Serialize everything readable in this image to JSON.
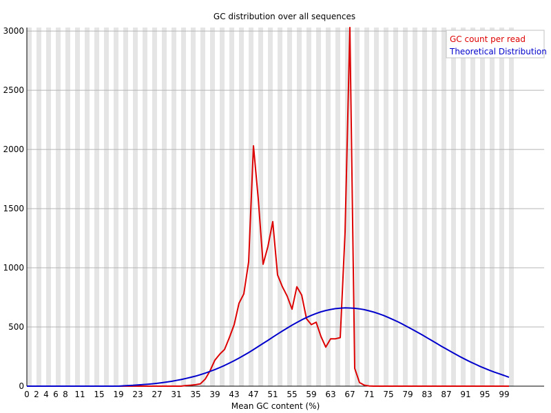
{
  "chart_data": {
    "type": "line",
    "title": "GC distribution over all sequences",
    "xlabel": "Mean GC content (%)",
    "ylabel": "",
    "x": [
      0,
      1,
      2,
      3,
      4,
      5,
      6,
      7,
      8,
      9,
      10,
      11,
      12,
      13,
      14,
      15,
      16,
      17,
      18,
      19,
      20,
      21,
      22,
      23,
      24,
      25,
      26,
      27,
      28,
      29,
      30,
      31,
      32,
      33,
      34,
      35,
      36,
      37,
      38,
      39,
      40,
      41,
      42,
      43,
      44,
      45,
      46,
      47,
      48,
      49,
      50,
      51,
      52,
      53,
      54,
      55,
      56,
      57,
      58,
      59,
      60,
      61,
      62,
      63,
      64,
      65,
      66,
      67,
      68,
      69,
      70,
      71,
      72,
      73,
      74,
      75,
      76,
      77,
      78,
      79,
      80,
      81,
      82,
      83,
      84,
      85,
      86,
      87,
      88,
      89,
      90,
      91,
      92,
      93,
      94,
      95,
      96,
      97,
      98,
      99,
      100
    ],
    "x_tick_labels": [
      "0",
      "2",
      "4",
      "6",
      "8",
      "11",
      "15",
      "19",
      "23",
      "27",
      "31",
      "35",
      "39",
      "43",
      "47",
      "51",
      "55",
      "59",
      "63",
      "67",
      "71",
      "75",
      "79",
      "83",
      "87",
      "91",
      "95",
      "99"
    ],
    "y_ticks": [
      0,
      500,
      1000,
      1500,
      2000,
      2500,
      3000
    ],
    "ylim": [
      0,
      3030
    ],
    "grid": "horizontal",
    "background": "alternating vertical bands",
    "legend_position": "top-right",
    "series": [
      {
        "name": "GC count per read",
        "color": "#dd0000",
        "values": [
          0,
          0,
          0,
          0,
          0,
          0,
          0,
          0,
          0,
          0,
          0,
          0,
          0,
          0,
          0,
          0,
          0,
          0,
          0,
          0,
          0,
          0,
          0,
          0,
          0,
          0,
          0,
          0,
          0,
          0,
          0,
          0,
          0,
          5,
          8,
          12,
          20,
          60,
          130,
          220,
          270,
          310,
          410,
          520,
          700,
          780,
          1050,
          2030,
          1580,
          1030,
          1180,
          1390,
          940,
          840,
          760,
          650,
          840,
          770,
          570,
          520,
          540,
          420,
          330,
          400,
          400,
          410,
          1300,
          3030,
          150,
          30,
          8,
          2,
          0,
          0,
          0,
          0,
          0,
          0,
          0,
          0,
          0,
          0,
          0,
          0,
          0,
          0,
          0,
          0,
          0,
          0,
          0,
          0,
          0,
          0,
          0,
          0,
          0,
          0,
          0,
          0,
          0
        ]
      },
      {
        "name": "Theoretical Distribution",
        "color": "#0000cc",
        "values": [
          0,
          0,
          0,
          0,
          0,
          0,
          0,
          0,
          0,
          0,
          0,
          0,
          0,
          0,
          0,
          0,
          0,
          0,
          0,
          0,
          3,
          5,
          7,
          10,
          13,
          16,
          20,
          24,
          29,
          35,
          41,
          48,
          56,
          65,
          75,
          85,
          97,
          110,
          125,
          140,
          157,
          175,
          195,
          215,
          237,
          260,
          284,
          309,
          335,
          361,
          387,
          414,
          440,
          466,
          491,
          515,
          538,
          560,
          580,
          598,
          614,
          628,
          639,
          648,
          655,
          659,
          661,
          660,
          658,
          653,
          646,
          636,
          625,
          612,
          597,
          580,
          562,
          543,
          522,
          500,
          478,
          456,
          433,
          409,
          385,
          361,
          337,
          314,
          291,
          268,
          246,
          225,
          205,
          186,
          167,
          150,
          133,
          118,
          104,
          90,
          75
        ]
      }
    ]
  }
}
